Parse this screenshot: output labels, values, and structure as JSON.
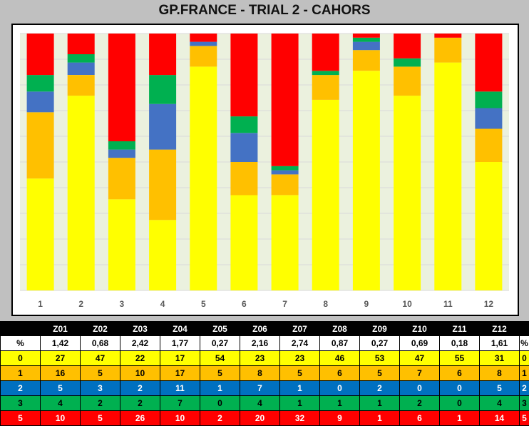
{
  "title": "GP.FRANCE - TRIAL 2  - CAHORS",
  "colors": {
    "level_0": "#ffff00",
    "level_1": "#ffc000",
    "level_2": "#4472c4",
    "level_3": "#00b050",
    "level_5": "#ff0000",
    "plot_bg": "#ebf1de"
  },
  "chart_data": {
    "type": "bar",
    "stacked": true,
    "normalized_to_100_percent": true,
    "categories": [
      "1",
      "2",
      "3",
      "4",
      "5",
      "6",
      "7",
      "8",
      "9",
      "10",
      "11",
      "12"
    ],
    "series": [
      {
        "level": "0",
        "color": "#ffff00",
        "values": [
          27,
          47,
          22,
          17,
          54,
          23,
          23,
          46,
          53,
          47,
          55,
          31
        ]
      },
      {
        "level": "1",
        "color": "#ffc000",
        "values": [
          16,
          5,
          10,
          17,
          5,
          8,
          5,
          6,
          5,
          7,
          6,
          8
        ]
      },
      {
        "level": "2",
        "color": "#4472c4",
        "values": [
          5,
          3,
          2,
          11,
          1,
          7,
          1,
          0,
          2,
          0,
          0,
          5
        ]
      },
      {
        "level": "3",
        "color": "#00b050",
        "values": [
          4,
          2,
          2,
          7,
          0,
          4,
          1,
          1,
          1,
          2,
          0,
          4
        ]
      },
      {
        "level": "5",
        "color": "#ff0000",
        "values": [
          10,
          5,
          26,
          10,
          2,
          20,
          32,
          9,
          1,
          6,
          1,
          14
        ]
      }
    ],
    "grid": true,
    "legend": "none"
  },
  "table": {
    "header": [
      "",
      "Z01",
      "Z02",
      "Z03",
      "Z04",
      "Z05",
      "Z06",
      "Z07",
      "Z08",
      "Z09",
      "Z10",
      "Z11",
      "Z12",
      ""
    ],
    "rows": [
      {
        "label": "%",
        "end": "%",
        "values": [
          "1,42",
          "0,68",
          "2,42",
          "1,77",
          "0,27",
          "2,16",
          "2,74",
          "0,87",
          "0,27",
          "0,69",
          "0,18",
          "1,61"
        ]
      },
      {
        "label": "0",
        "end": "0",
        "color": "#ffff00",
        "text": "#000000",
        "values": [
          "27",
          "47",
          "22",
          "17",
          "54",
          "23",
          "23",
          "46",
          "53",
          "47",
          "55",
          "31"
        ]
      },
      {
        "label": "1",
        "end": "1",
        "color": "#ffc000",
        "text": "#000000",
        "values": [
          "16",
          "5",
          "10",
          "17",
          "5",
          "8",
          "5",
          "6",
          "5",
          "7",
          "6",
          "8"
        ]
      },
      {
        "label": "2",
        "end": "2",
        "color": "#0070c0",
        "text": "#ffffff",
        "values": [
          "5",
          "3",
          "2",
          "11",
          "1",
          "7",
          "1",
          "0",
          "2",
          "0",
          "0",
          "5"
        ]
      },
      {
        "label": "3",
        "end": "3",
        "color": "#00b050",
        "text": "#000000",
        "values": [
          "4",
          "2",
          "2",
          "7",
          "0",
          "4",
          "1",
          "1",
          "1",
          "2",
          "0",
          "4"
        ]
      },
      {
        "label": "5",
        "end": "5",
        "color": "#ff0000",
        "text": "#ffffff",
        "values": [
          "10",
          "5",
          "26",
          "10",
          "2",
          "20",
          "32",
          "9",
          "1",
          "6",
          "1",
          "14"
        ]
      }
    ]
  }
}
